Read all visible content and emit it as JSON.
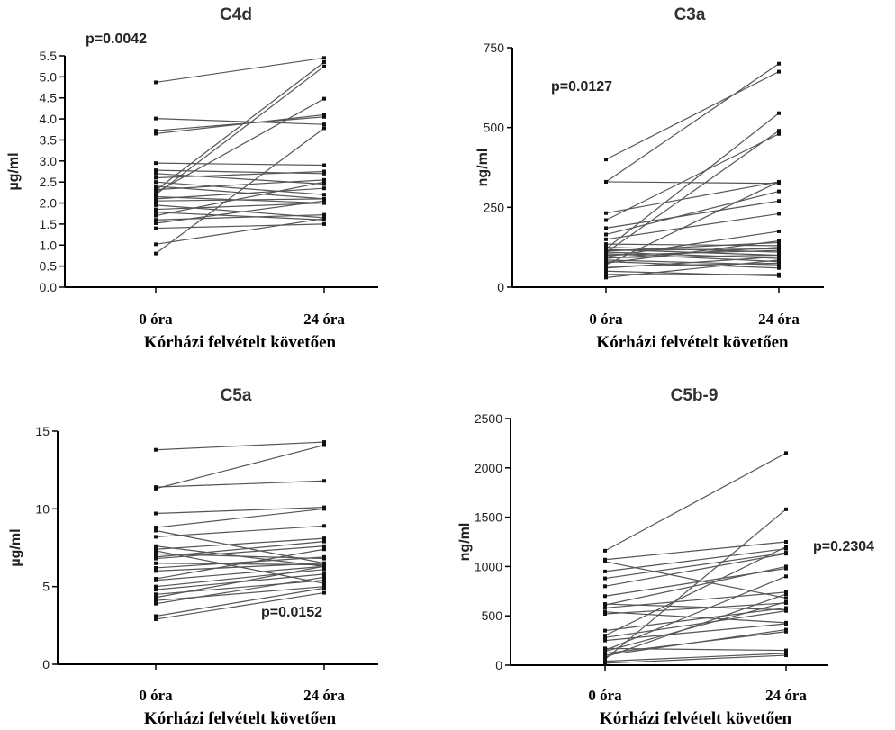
{
  "chart_data": [
    {
      "type": "line",
      "title": "C4d",
      "ylabel": "µg/ml",
      "categories": [
        "0 óra",
        "24 óra"
      ],
      "xlabel": "Kórházi felvételt követően",
      "ylim": [
        0,
        5.5
      ],
      "yticks": [
        0.0,
        0.5,
        1.0,
        1.5,
        2.0,
        2.5,
        3.0,
        3.5,
        4.0,
        4.5,
        5.0,
        5.5
      ],
      "ytick_labels": [
        "0.0",
        "0.5",
        "1.0",
        "1.5",
        "2.0",
        "2.5",
        "3.0",
        "3.5",
        "4.0",
        "4.5",
        "5.0",
        "5.5"
      ],
      "annotation": "p=0.0042",
      "pairs": [
        [
          4.87,
          5.45
        ],
        [
          4.01,
          3.87
        ],
        [
          3.72,
          4.05
        ],
        [
          3.65,
          4.1
        ],
        [
          2.95,
          2.9
        ],
        [
          2.78,
          2.7
        ],
        [
          2.7,
          2.45
        ],
        [
          2.6,
          2.75
        ],
        [
          2.5,
          2.2
        ],
        [
          2.4,
          2.1
        ],
        [
          2.32,
          2.55
        ],
        [
          2.3,
          5.35
        ],
        [
          2.25,
          4.48
        ],
        [
          2.2,
          5.25
        ],
        [
          2.15,
          2.0
        ],
        [
          2.1,
          2.35
        ],
        [
          2.05,
          2.1
        ],
        [
          1.95,
          1.65
        ],
        [
          1.85,
          2.0
        ],
        [
          1.78,
          1.6
        ],
        [
          1.7,
          2.5
        ],
        [
          1.6,
          1.72
        ],
        [
          1.52,
          2.05
        ],
        [
          1.4,
          1.5
        ],
        [
          1.02,
          1.63
        ],
        [
          0.8,
          3.78
        ]
      ]
    },
    {
      "type": "line",
      "title": "C3a",
      "ylabel": "ng/ml",
      "categories": [
        "0 óra",
        "24 óra"
      ],
      "xlabel": "Kórházi felvételt követően",
      "ylim": [
        0,
        750
      ],
      "yticks": [
        0,
        250,
        500,
        750
      ],
      "ytick_labels": [
        "0",
        "250",
        "500",
        "750"
      ],
      "annotation": "p=0.0127",
      "pairs": [
        [
          400,
          675
        ],
        [
          330,
          700
        ],
        [
          330,
          325
        ],
        [
          232,
          330
        ],
        [
          210,
          480
        ],
        [
          185,
          270
        ],
        [
          165,
          300
        ],
        [
          150,
          230
        ],
        [
          135,
          130
        ],
        [
          125,
          110
        ],
        [
          120,
          545
        ],
        [
          118,
          100
        ],
        [
          115,
          120
        ],
        [
          113,
          140
        ],
        [
          110,
          90
        ],
        [
          108,
          490
        ],
        [
          105,
          80
        ],
        [
          100,
          115
        ],
        [
          95,
          175
        ],
        [
          92,
          100
        ],
        [
          90,
          125
        ],
        [
          85,
          70
        ],
        [
          80,
          60
        ],
        [
          75,
          145
        ],
        [
          70,
          330
        ],
        [
          65,
          75
        ],
        [
          60,
          95
        ],
        [
          50,
          35
        ],
        [
          40,
          40
        ],
        [
          30,
          85
        ]
      ]
    },
    {
      "type": "line",
      "title": "C5a",
      "ylabel": "µg/ml",
      "categories": [
        "0 óra",
        "24 óra"
      ],
      "xlabel": "Kórházi felvételt követően",
      "ylim": [
        0,
        15
      ],
      "yticks": [
        0,
        5,
        10,
        15
      ],
      "ytick_labels": [
        "0",
        "5",
        "10",
        "15"
      ],
      "annotation": "p=0.0152",
      "pairs": [
        [
          13.8,
          14.3
        ],
        [
          11.4,
          11.8
        ],
        [
          11.3,
          14.1
        ],
        [
          9.7,
          10.1
        ],
        [
          8.8,
          10.0
        ],
        [
          8.6,
          6.5
        ],
        [
          8.2,
          8.9
        ],
        [
          7.6,
          6.3
        ],
        [
          7.4,
          8.1
        ],
        [
          7.3,
          5.2
        ],
        [
          7.1,
          6.8
        ],
        [
          6.9,
          7.9
        ],
        [
          6.8,
          7.6
        ],
        [
          6.5,
          6.4
        ],
        [
          6.2,
          6.9
        ],
        [
          6.0,
          6.5
        ],
        [
          5.5,
          7.4
        ],
        [
          5.4,
          6.3
        ],
        [
          5.0,
          6.1
        ],
        [
          4.8,
          5.8
        ],
        [
          4.5,
          5.4
        ],
        [
          4.3,
          6.3
        ],
        [
          4.1,
          5.0
        ],
        [
          3.9,
          5.6
        ],
        [
          3.1,
          4.9
        ],
        [
          2.9,
          4.6
        ]
      ]
    },
    {
      "type": "line",
      "title": "C5b-9",
      "ylabel": "ng/ml",
      "categories": [
        "0 óra",
        "24 óra"
      ],
      "xlabel": "Kórházi felvételt követően",
      "ylim": [
        0,
        2500
      ],
      "yticks": [
        0,
        500,
        1000,
        1500,
        2000,
        2500
      ],
      "ytick_labels": [
        "0",
        "500",
        "1000",
        "1500",
        "2000",
        "2500"
      ],
      "annotation": "p=0.2304",
      "pairs": [
        [
          1160,
          2150
        ],
        [
          1070,
          1250
        ],
        [
          1050,
          680
        ],
        [
          950,
          1180
        ],
        [
          880,
          1140
        ],
        [
          800,
          1130
        ],
        [
          700,
          980
        ],
        [
          620,
          560
        ],
        [
          610,
          1000
        ],
        [
          580,
          740
        ],
        [
          540,
          430
        ],
        [
          520,
          630
        ],
        [
          350,
          580
        ],
        [
          300,
          1200
        ],
        [
          280,
          550
        ],
        [
          250,
          420
        ],
        [
          170,
          150
        ],
        [
          150,
          900
        ],
        [
          140,
          640
        ],
        [
          120,
          340
        ],
        [
          100,
          360
        ],
        [
          80,
          720
        ],
        [
          60,
          1580
        ],
        [
          40,
          120
        ],
        [
          20,
          100
        ]
      ]
    }
  ]
}
